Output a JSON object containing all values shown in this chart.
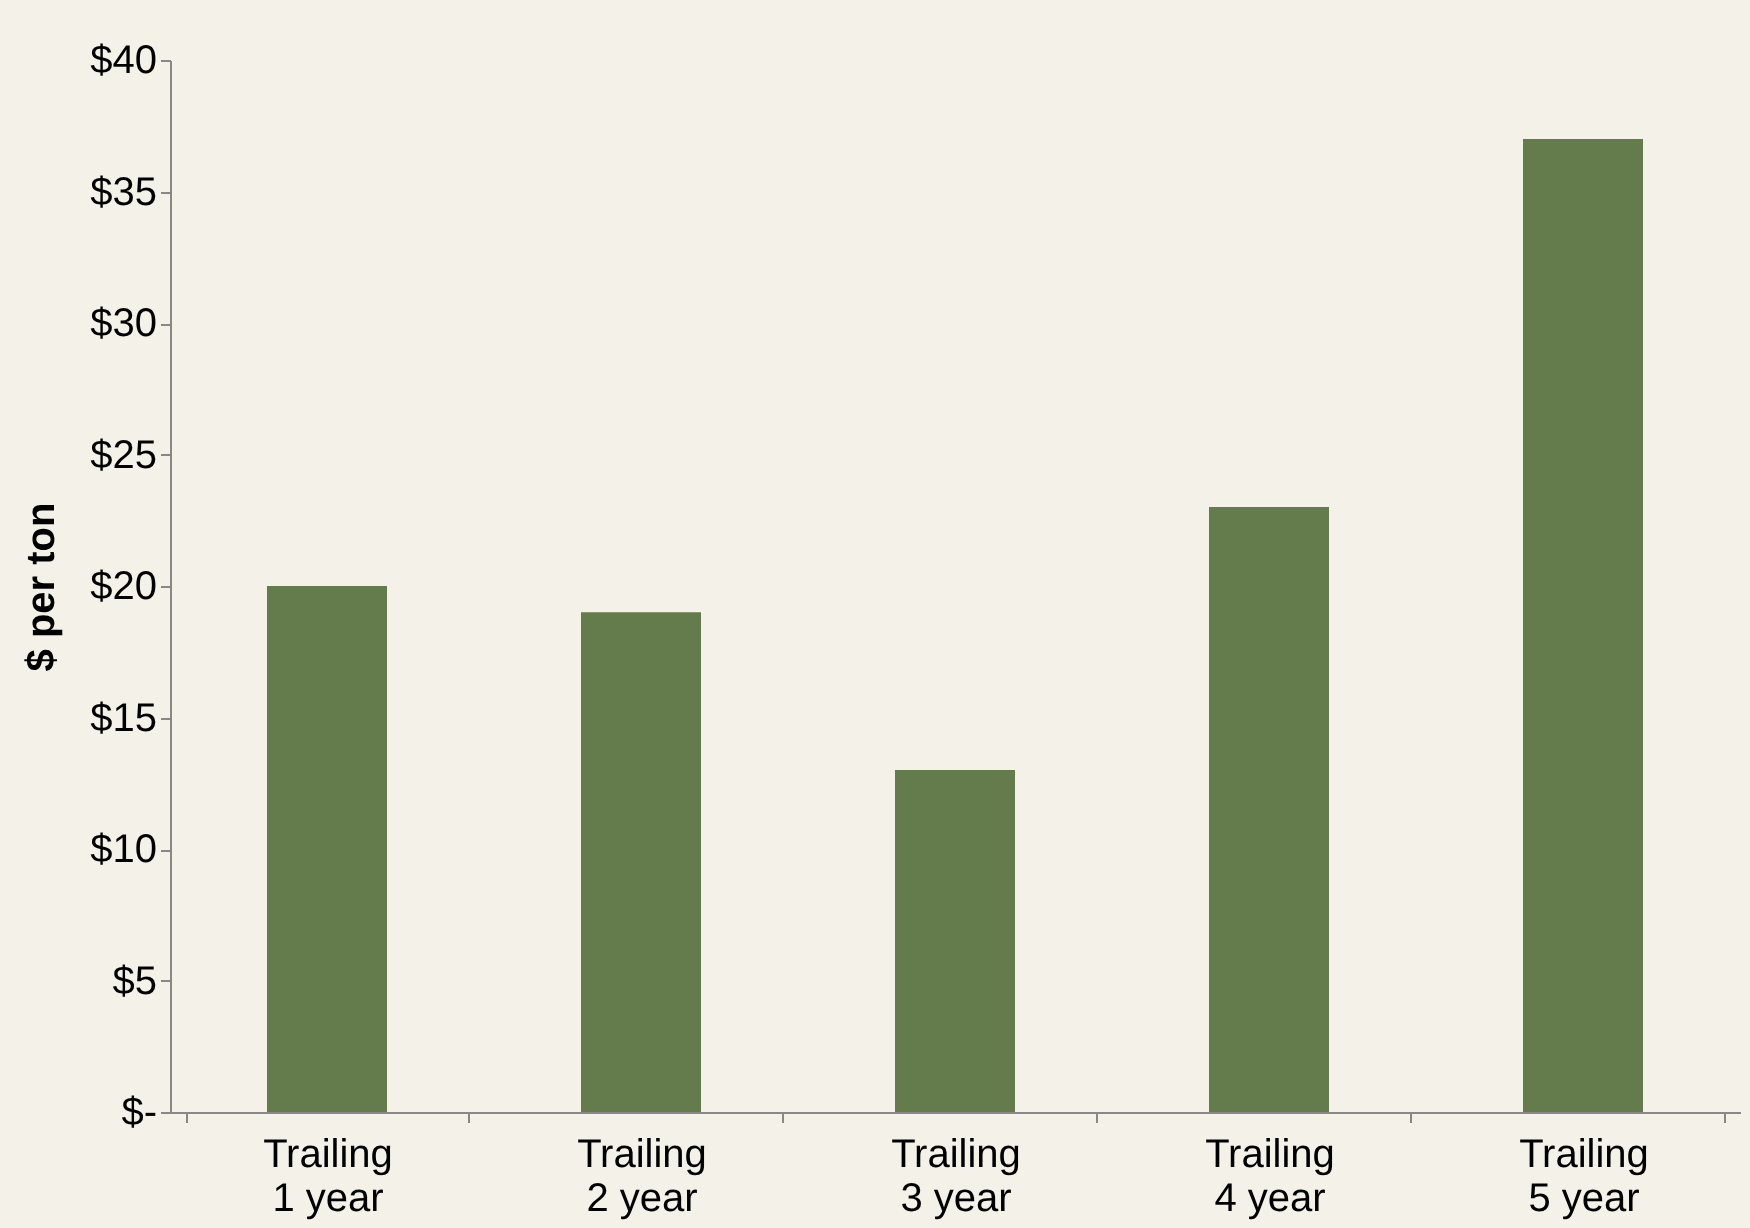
{
  "chart_data": {
    "type": "bar",
    "ylabel": "$ per ton",
    "categories": [
      "Trailing\n1 year",
      "Trailing\n2 year",
      "Trailing\n3 year",
      "Trailing\n4 year",
      "Trailing\n5 year"
    ],
    "values": [
      20,
      19,
      13,
      23,
      37
    ],
    "color": "#647b4b",
    "ylim": [
      0,
      40
    ],
    "yticks": [
      {
        "value": 0,
        "label": "$-"
      },
      {
        "value": 5,
        "label": "$5"
      },
      {
        "value": 10,
        "label": "$10"
      },
      {
        "value": 15,
        "label": "$15"
      },
      {
        "value": 20,
        "label": "$20"
      },
      {
        "value": 25,
        "label": "$25"
      },
      {
        "value": 30,
        "label": "$30"
      },
      {
        "value": 35,
        "label": "$35"
      },
      {
        "value": 40,
        "label": "$40"
      }
    ],
    "grid": false
  }
}
